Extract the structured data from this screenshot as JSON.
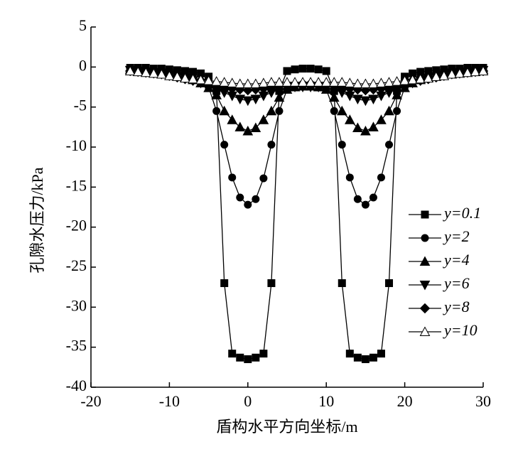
{
  "chart_data": {
    "type": "line",
    "x_label": "盾构水平方向坐标/m",
    "y_label": "孔隙水压力/kPa",
    "x": [
      -15,
      -14,
      -13,
      -12,
      -11,
      -10,
      -9,
      -8,
      -7,
      -6,
      -5,
      -4,
      -3,
      -2,
      -1,
      0,
      1,
      2,
      3,
      4,
      5,
      6,
      7,
      8,
      9,
      10,
      11,
      12,
      13,
      14,
      15,
      16,
      17,
      18,
      19,
      20,
      21,
      22,
      23,
      24,
      25,
      26,
      27,
      28,
      29,
      30
    ],
    "xlim": [
      -20,
      30
    ],
    "xticks": [
      -20,
      -10,
      0,
      10,
      20,
      30
    ],
    "ylim": [
      -40,
      5
    ],
    "yticks": [
      5,
      0,
      -5,
      -10,
      -15,
      -20,
      -25,
      -30,
      -35,
      -40
    ],
    "legend": "right",
    "series": [
      {
        "name": "y=0.1",
        "color": "#000000",
        "marker": "square",
        "values": [
          -0.1,
          -0.1,
          -0.1,
          -0.2,
          -0.2,
          -0.3,
          -0.4,
          -0.5,
          -0.6,
          -0.8,
          -1.2,
          -3,
          -27,
          -35.8,
          -36.3,
          -36.5,
          -36.3,
          -35.8,
          -27,
          -3,
          -0.5,
          -0.3,
          -0.2,
          -0.2,
          -0.3,
          -0.5,
          -3,
          -27,
          -35.8,
          -36.3,
          -36.5,
          -36.3,
          -35.8,
          -27,
          -3,
          -1.2,
          -0.8,
          -0.6,
          -0.5,
          -0.4,
          -0.3,
          -0.2,
          -0.2,
          -0.1,
          -0.1,
          -0.1
        ]
      },
      {
        "name": "y=2",
        "color": "#000000",
        "marker": "circle",
        "values": [
          -0.2,
          -0.2,
          -0.3,
          -0.4,
          -0.5,
          -0.6,
          -0.8,
          -1,
          -1.3,
          -1.7,
          -2.5,
          -5.5,
          -9.7,
          -13.8,
          -16.3,
          -17.2,
          -16.5,
          -13.9,
          -9.7,
          -5.5,
          -2.8,
          -2.2,
          -2.1,
          -2.1,
          -2.2,
          -2.8,
          -5.5,
          -9.7,
          -13.8,
          -16.5,
          -17.2,
          -16.3,
          -13.8,
          -9.7,
          -5.5,
          -2.5,
          -1.7,
          -1.3,
          -1,
          -0.8,
          -0.6,
          -0.5,
          -0.4,
          -0.3,
          -0.2,
          -0.2
        ]
      },
      {
        "name": "y=4",
        "color": "#000000",
        "marker": "triangle-up",
        "values": [
          -0.3,
          -0.4,
          -0.5,
          -0.6,
          -0.7,
          -0.9,
          -1.1,
          -1.3,
          -1.6,
          -2,
          -2.6,
          -3.5,
          -5.5,
          -6.6,
          -7.5,
          -8,
          -7.6,
          -6.6,
          -5.5,
          -3.8,
          -2.8,
          -2.5,
          -2.4,
          -2.4,
          -2.5,
          -2.8,
          -3.8,
          -5.5,
          -6.6,
          -7.6,
          -8,
          -7.5,
          -6.6,
          -5.5,
          -3.5,
          -2.6,
          -2,
          -1.6,
          -1.3,
          -1.1,
          -0.9,
          -0.7,
          -0.6,
          -0.5,
          -0.4,
          -0.3
        ]
      },
      {
        "name": "y=6",
        "color": "#000000",
        "marker": "triangle-down",
        "values": [
          -0.4,
          -0.5,
          -0.6,
          -0.7,
          -0.8,
          -1,
          -1.2,
          -1.4,
          -1.7,
          -2,
          -2.4,
          -2.8,
          -3.2,
          -3.6,
          -4,
          -4.2,
          -4,
          -3.6,
          -3.2,
          -2.8,
          -2.6,
          -2.5,
          -2.5,
          -2.5,
          -2.5,
          -2.6,
          -2.8,
          -3.2,
          -3.6,
          -4,
          -4.2,
          -4,
          -3.6,
          -3.2,
          -2.8,
          -2.4,
          -2,
          -1.7,
          -1.4,
          -1.2,
          -1,
          -0.8,
          -0.7,
          -0.6,
          -0.5,
          -0.4
        ]
      },
      {
        "name": "y=8",
        "color": "#000000",
        "marker": "diamond",
        "values": [
          -0.5,
          -0.6,
          -0.7,
          -0.8,
          -0.9,
          -1.1,
          -1.3,
          -1.5,
          -1.7,
          -1.9,
          -2.1,
          -2.3,
          -2.5,
          -2.7,
          -2.8,
          -2.9,
          -2.8,
          -2.7,
          -2.5,
          -2.4,
          -2.3,
          -2.3,
          -2.3,
          -2.3,
          -2.3,
          -2.3,
          -2.4,
          -2.5,
          -2.7,
          -2.8,
          -2.9,
          -2.8,
          -2.7,
          -2.5,
          -2.3,
          -2.1,
          -1.9,
          -1.7,
          -1.5,
          -1.3,
          -1.1,
          -0.9,
          -0.8,
          -0.7,
          -0.6,
          -0.5
        ]
      },
      {
        "name": "y=10",
        "color": "#000000",
        "marker": "triangle-open",
        "values": [
          -0.5,
          -0.6,
          -0.7,
          -0.8,
          -0.9,
          -1.1,
          -1.2,
          -1.4,
          -1.5,
          -1.6,
          -1.7,
          -1.8,
          -1.9,
          -2,
          -2.1,
          -2.1,
          -2.1,
          -2,
          -1.9,
          -1.9,
          -1.9,
          -1.9,
          -1.9,
          -1.9,
          -1.9,
          -1.9,
          -1.9,
          -1.9,
          -2,
          -2.1,
          -2.1,
          -2.1,
          -2,
          -1.9,
          -1.8,
          -1.7,
          -1.6,
          -1.5,
          -1.4,
          -1.2,
          -1.1,
          -0.9,
          -0.8,
          -0.7,
          -0.6,
          -0.5
        ]
      }
    ]
  }
}
